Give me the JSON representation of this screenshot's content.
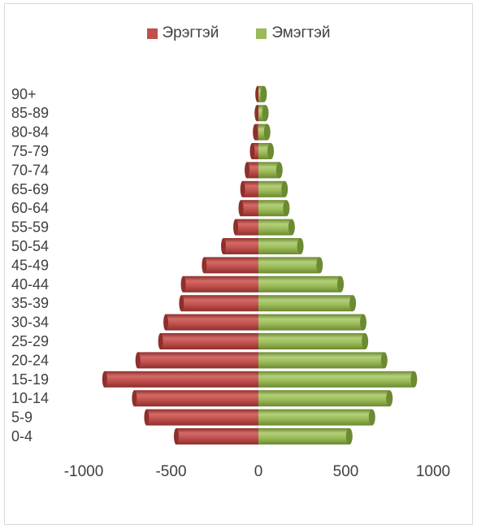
{
  "legend": {
    "male_label": "Эрэгтэй",
    "female_label": "Эмэгтэй"
  },
  "colors": {
    "male": "#c0504d",
    "male_dark": "#8e2f2c",
    "male_light": "#d46a67",
    "female": "#9bbb59",
    "female_dark": "#6b8a31",
    "female_light": "#b3cf7a"
  },
  "chart_data": {
    "type": "bar",
    "orientation": "horizontal",
    "style": "population-pyramid-3d-cylinder",
    "categories": [
      "0-4",
      "5-9",
      "10-14",
      "15-19",
      "20-24",
      "25-29",
      "30-34",
      "35-39",
      "40-44",
      "45-49",
      "50-54",
      "55-59",
      "60-64",
      "65-69",
      "70-74",
      "75-79",
      "80-84",
      "85-89",
      "90+"
    ],
    "series": [
      {
        "name": "Эрэгтэй",
        "values": [
          -470,
          -640,
          -710,
          -880,
          -690,
          -560,
          -530,
          -440,
          -430,
          -310,
          -200,
          -130,
          -100,
          -90,
          -65,
          -35,
          -18,
          -8,
          -4
        ]
      },
      {
        "name": "Эмэгтэй",
        "values": [
          520,
          650,
          750,
          890,
          720,
          610,
          600,
          540,
          470,
          350,
          240,
          190,
          160,
          150,
          120,
          70,
          50,
          40,
          30
        ]
      }
    ],
    "xticks": [
      -1000,
      -500,
      0,
      500,
      1000
    ],
    "xtick_labels": [
      "-1000",
      "-500",
      "0",
      "500",
      "1000"
    ],
    "xlim": [
      -1000,
      1000
    ],
    "grid": false,
    "legend_position": "top"
  }
}
